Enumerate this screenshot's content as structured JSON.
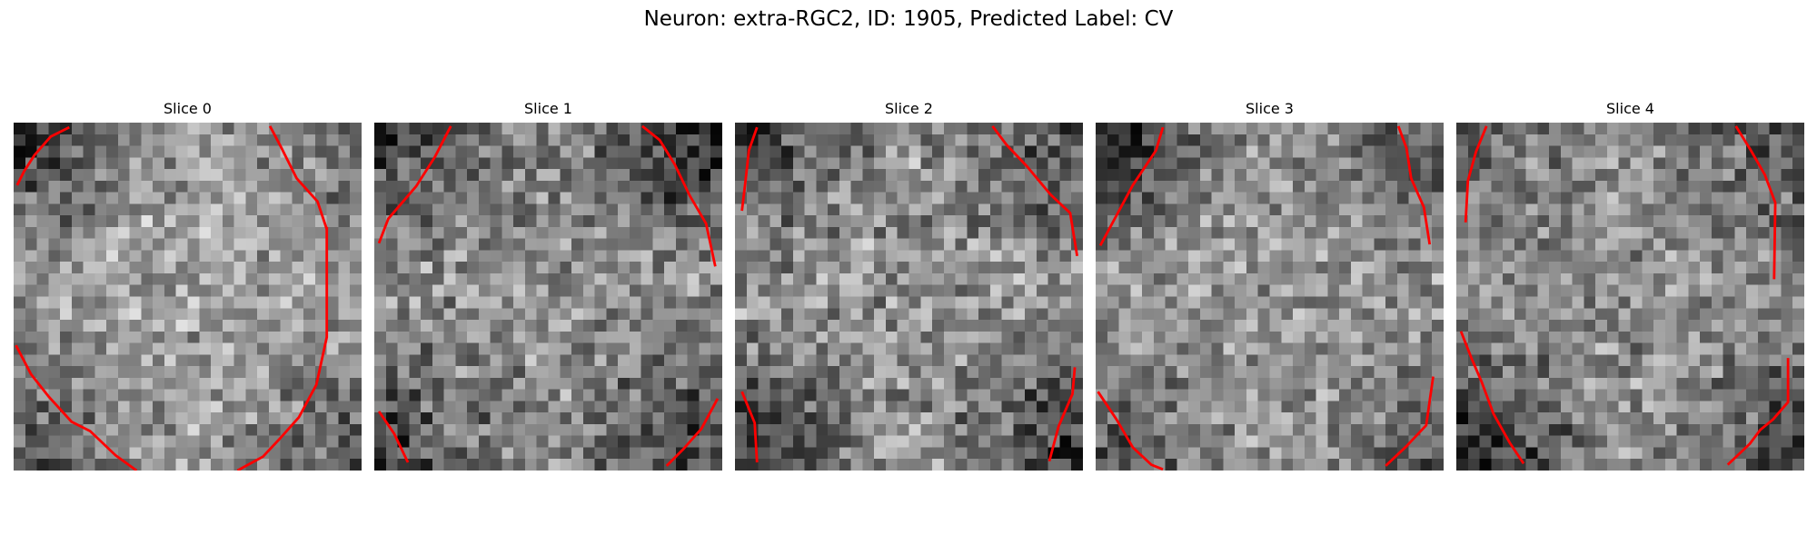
{
  "figure": {
    "title": "Neuron: extra-RGC2, ID: 1905, Predicted Label: CV"
  },
  "image": {
    "grid_size": 30,
    "colormap": "gray",
    "contour_color": "#ff0000"
  },
  "slices": [
    {
      "title": "Slice 0"
    },
    {
      "title": "Slice 1"
    },
    {
      "title": "Slice 2"
    },
    {
      "title": "Slice 3"
    },
    {
      "title": "Slice 4"
    }
  ]
}
